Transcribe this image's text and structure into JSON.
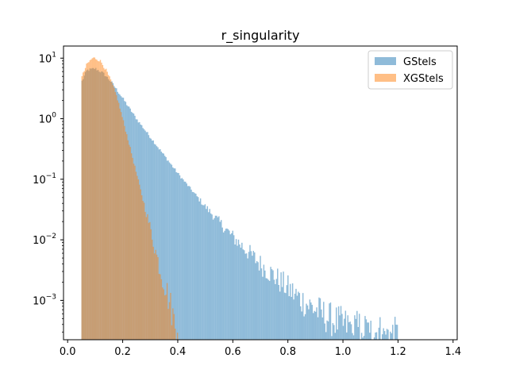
{
  "chart_data": {
    "type": "histogram",
    "title": "r_singularity",
    "xlabel": "",
    "ylabel": "",
    "xlim": [
      -0.015,
      1.415
    ],
    "ylim_log10": [
      -3.65,
      1.2
    ],
    "yscale": "log",
    "x_ticks": [
      0.0,
      0.2,
      0.4,
      0.6,
      0.8,
      1.0,
      1.2,
      1.4
    ],
    "x_tick_labels": [
      "0.0",
      "0.2",
      "0.4",
      "0.6",
      "0.8",
      "1.0",
      "1.2",
      "1.4"
    ],
    "y_ticks_exponent": [
      -3,
      -2,
      -1,
      0,
      1
    ],
    "y_tick_bases": [
      "10",
      "10",
      "10",
      "10",
      "10"
    ],
    "y_tick_exponents": [
      "−3",
      "−2",
      "−1",
      "0",
      "1"
    ],
    "grid": false,
    "legend_position": "upper right",
    "series": [
      {
        "name": "GStels",
        "color": "#1f77b4",
        "alpha": 0.5,
        "profile_x": [
          0.05,
          0.07,
          0.1,
          0.13,
          0.16,
          0.2,
          0.25,
          0.3,
          0.35,
          0.4,
          0.5,
          0.6,
          0.7,
          0.8,
          0.85,
          0.9,
          0.95,
          1.0,
          1.05,
          1.1,
          1.15,
          1.2
        ],
        "profile_log10_density": [
          0.6,
          0.8,
          0.83,
          0.75,
          0.6,
          0.34,
          0.0,
          -0.3,
          -0.6,
          -0.9,
          -1.45,
          -1.95,
          -2.4,
          -2.8,
          -3.0,
          -3.15,
          -3.3,
          -3.4,
          -3.45,
          -3.5,
          -3.55,
          -3.6
        ]
      },
      {
        "name": "XGStels",
        "color": "#ff7f0e",
        "alpha": 0.5,
        "profile_x": [
          0.05,
          0.07,
          0.09,
          0.1,
          0.12,
          0.14,
          0.16,
          0.18,
          0.2,
          0.22,
          0.25,
          0.28,
          0.3,
          0.32,
          0.34,
          0.36,
          0.38,
          0.4
        ],
        "profile_log10_density": [
          0.67,
          0.9,
          1.0,
          1.0,
          0.95,
          0.8,
          0.6,
          0.35,
          0.0,
          -0.35,
          -0.9,
          -1.45,
          -1.8,
          -2.2,
          -2.55,
          -2.85,
          -3.2,
          -3.6
        ]
      }
    ]
  }
}
